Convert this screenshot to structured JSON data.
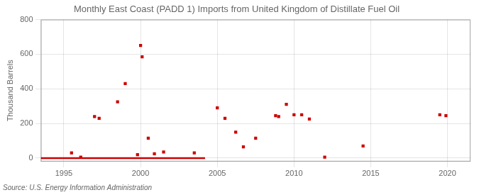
{
  "chart_data": {
    "type": "scatter",
    "title": "Monthly East Coast (PADD 1) Imports from United Kingdom of Distillate Fuel Oil",
    "ylabel": "Thousand Barrels",
    "source": "Source: U.S. Energy Information Administration",
    "xlim": [
      1993.5,
      2021.5
    ],
    "ylim": [
      -20,
      800
    ],
    "xticks": [
      1995,
      2000,
      2005,
      2010,
      2015,
      2020
    ],
    "yticks": [
      0,
      200,
      400,
      600,
      800
    ],
    "grid": true,
    "series": [
      {
        "type": "scatter",
        "marker": "square",
        "color": "#cc0000",
        "x": [
          1995.5,
          1996.1,
          1997.0,
          1997.3,
          1998.5,
          1999.0,
          1999.8,
          2000.0,
          2000.1,
          2000.5,
          2000.9,
          2001.5,
          2003.5,
          2005.0,
          2005.5,
          2006.2,
          2006.7,
          2007.5,
          2008.8,
          2009.0,
          2009.5,
          2010.0,
          2010.5,
          2011.0,
          2012.0,
          2014.5,
          2019.5,
          2019.9
        ],
        "values": [
          30,
          5,
          240,
          230,
          325,
          430,
          20,
          650,
          585,
          115,
          25,
          35,
          30,
          290,
          230,
          150,
          65,
          115,
          245,
          240,
          310,
          250,
          250,
          225,
          5,
          70,
          250,
          245
        ]
      },
      {
        "type": "line",
        "line_style": "solid",
        "color": "#cc0000",
        "x": [
          1993.5,
          2004.2
        ],
        "values": [
          0,
          0
        ]
      }
    ]
  }
}
